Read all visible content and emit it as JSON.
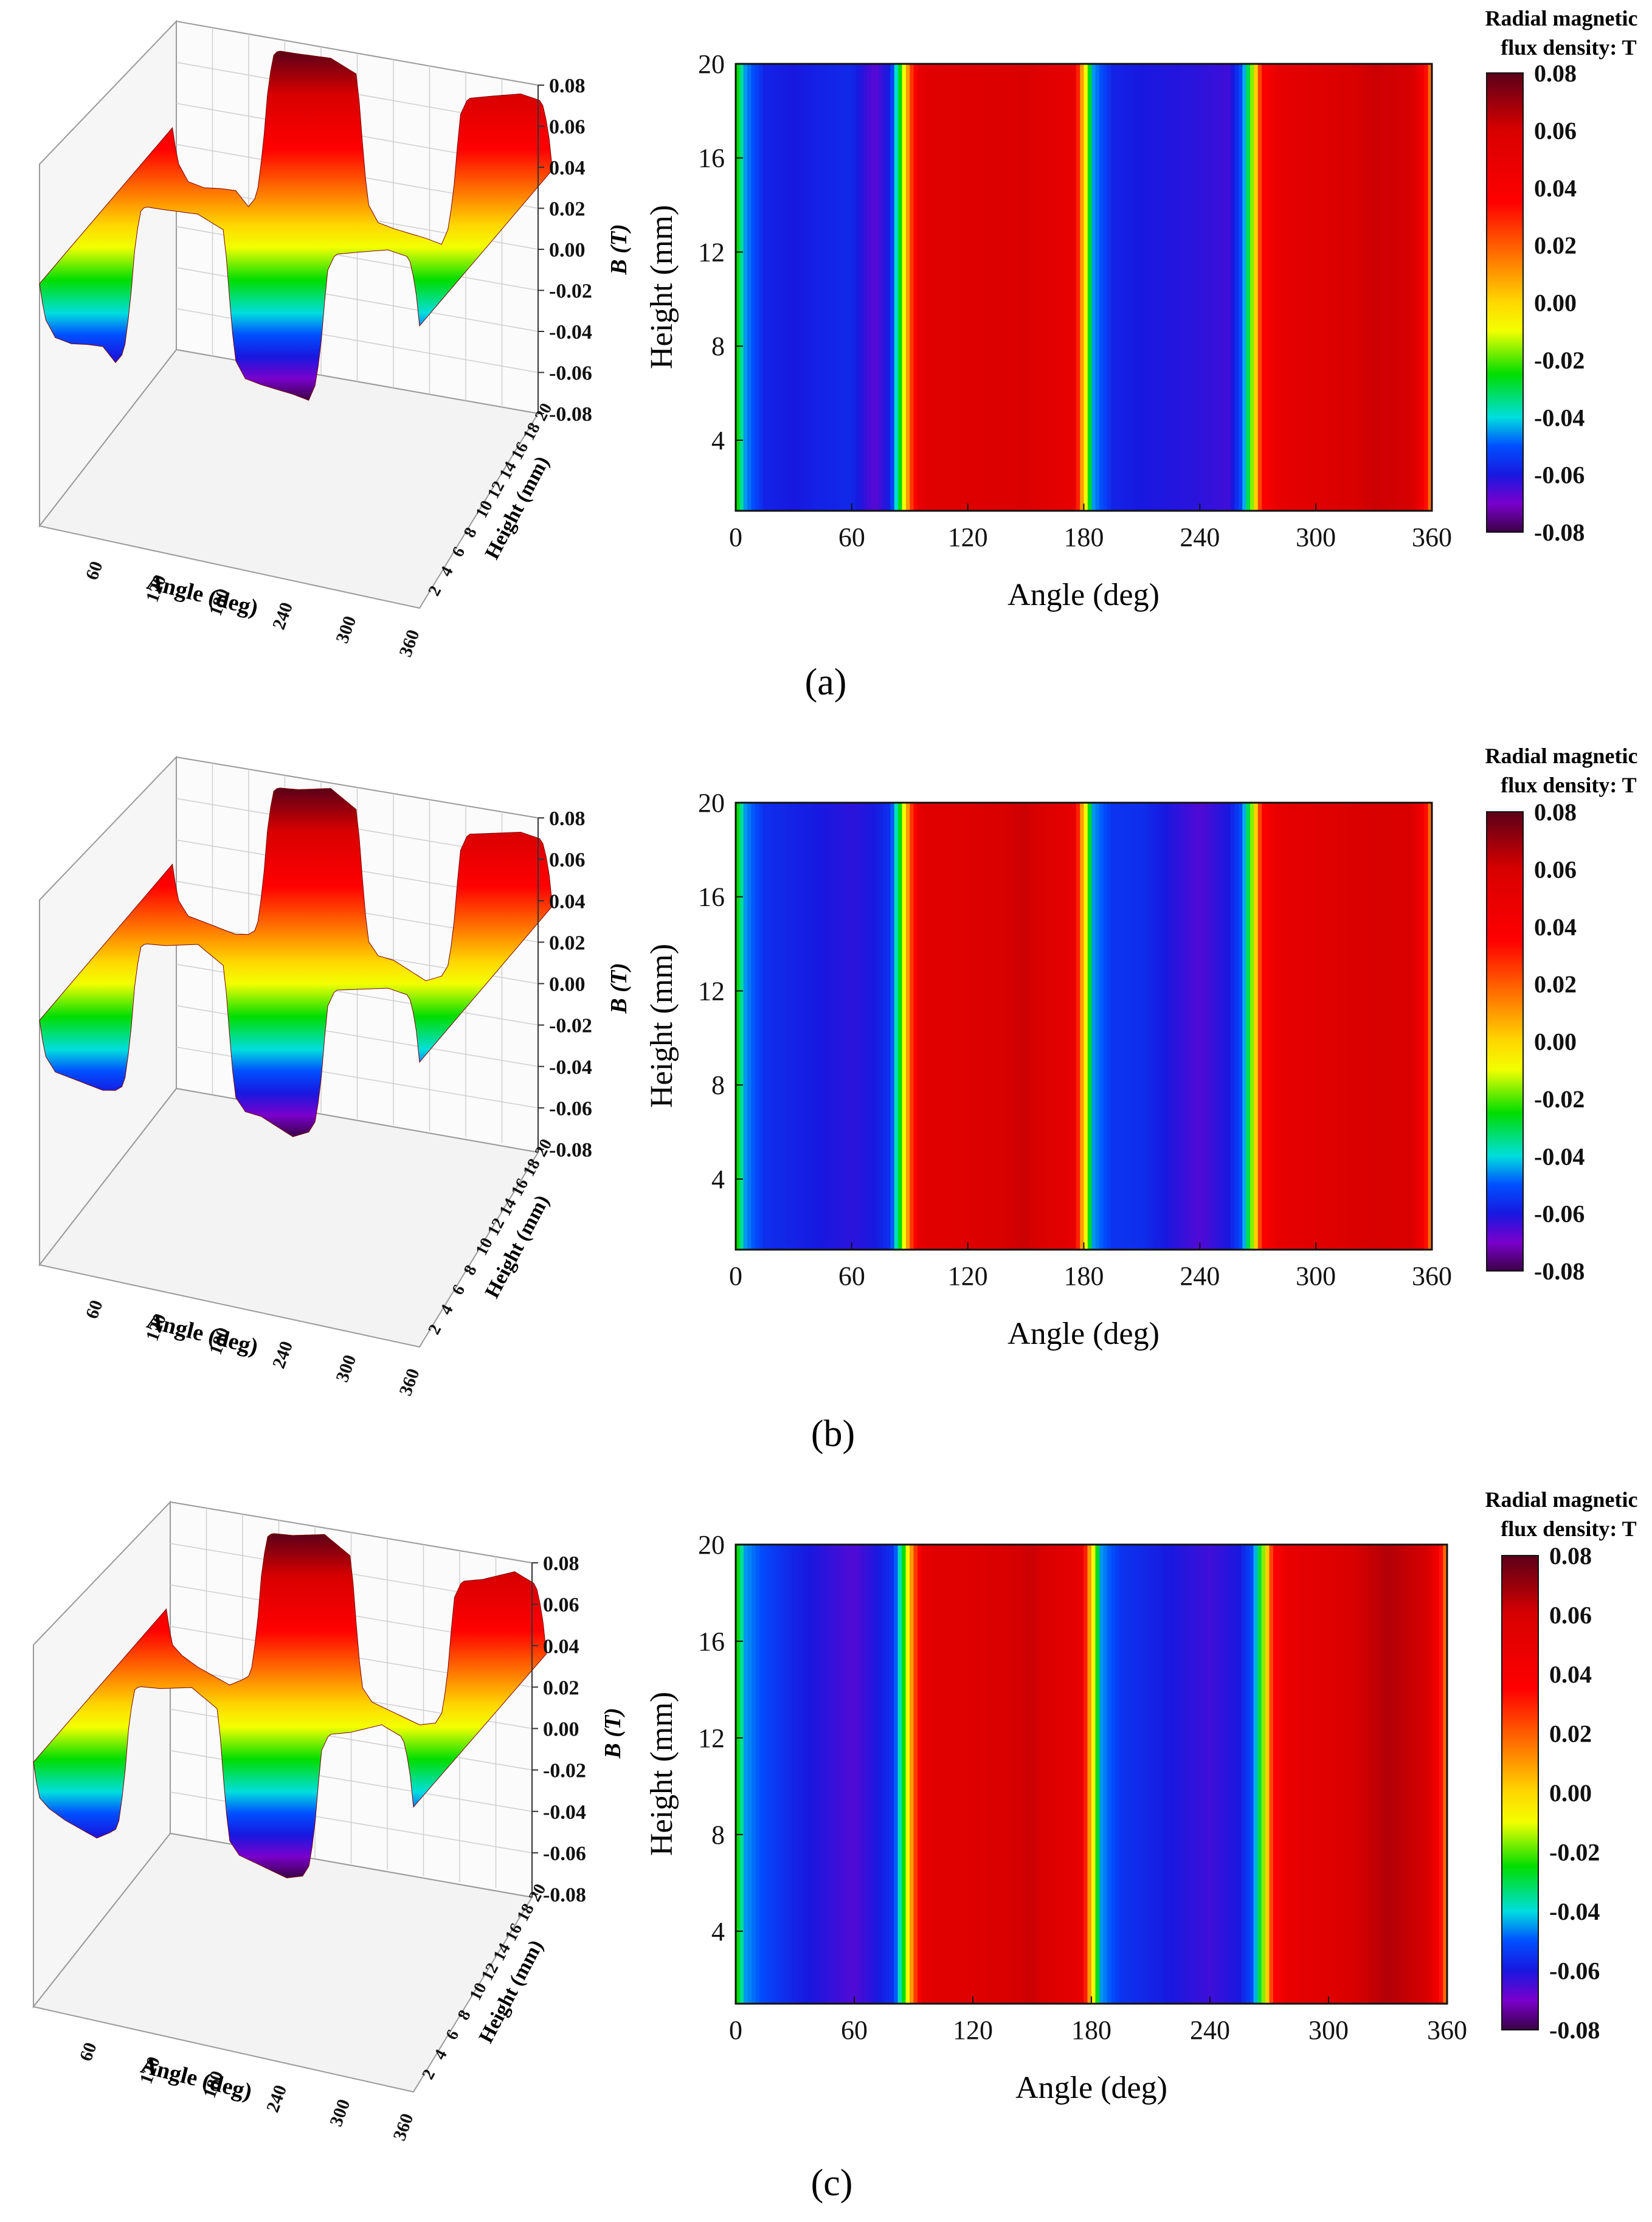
{
  "figure": {
    "panel_labels": [
      "(a)",
      "(b)",
      "(c)"
    ]
  },
  "colorbar": {
    "title_line1": "Radial magnetic",
    "title_line2": "flux density: T",
    "tick_labels": [
      "0.08",
      "0.06",
      "0.04",
      "0.02",
      "0.00",
      "-0.02",
      "-0.04",
      "-0.06",
      "-0.08"
    ],
    "levels": [
      -0.08,
      -0.06,
      -0.04,
      -0.02,
      0.0,
      0.02,
      0.04,
      0.06,
      0.08
    ],
    "colors": [
      "#5a0018",
      "#b00000",
      "#ff0000",
      "#ff7a00",
      "#ffd800",
      "#f2ff00",
      "#00dd00",
      "#00dede",
      "#0050ff",
      "#1818e0",
      "#7a00cc",
      "#3a0046"
    ]
  },
  "chart_data": [
    {
      "panel": "(a)",
      "type": "heatmap",
      "title": "",
      "xlabel": "Angle (deg)",
      "ylabel": "Height (mm)",
      "zlabel": "B (T)",
      "xlim": [
        0,
        360
      ],
      "ylim": [
        1,
        20
      ],
      "zlim": [
        -0.08,
        0.08
      ],
      "x_tick_labels": [
        "0",
        "60",
        "120",
        "180",
        "240",
        "300",
        "360"
      ],
      "y_tick_labels": [
        "4",
        "8",
        "12",
        "16",
        "20"
      ],
      "surface_angle_ticks": [
        "60",
        "120",
        "180",
        "240",
        "300",
        "360"
      ],
      "surface_height_ticks": [
        "2",
        "4",
        "6",
        "8",
        "10",
        "12",
        "14",
        "16",
        "18",
        "20"
      ],
      "surface_b_ticks": [
        "0.08",
        "0.06",
        "0.04",
        "0.02",
        "0.00",
        "-0.02",
        "-0.04",
        "-0.06",
        "-0.08"
      ],
      "angle_profile_deg": [
        0,
        5,
        15,
        30,
        45,
        60,
        72,
        80,
        86,
        90,
        95,
        100,
        120,
        150,
        175,
        180,
        185,
        195,
        210,
        240,
        255,
        262,
        268,
        272,
        280,
        300,
        330,
        350,
        356,
        360
      ],
      "b_profile_T": [
        -0.02,
        -0.045,
        -0.058,
        -0.06,
        -0.058,
        -0.057,
        -0.067,
        -0.058,
        -0.02,
        0.02,
        0.05,
        0.055,
        0.056,
        0.058,
        0.05,
        0.0,
        -0.045,
        -0.058,
        -0.06,
        -0.062,
        -0.064,
        -0.05,
        -0.01,
        0.035,
        0.05,
        0.055,
        0.062,
        0.06,
        0.04,
        0.01
      ]
    },
    {
      "panel": "(b)",
      "type": "heatmap",
      "title": "",
      "xlabel": "Angle (deg)",
      "ylabel": "Height (mm)",
      "zlabel": "B (T)",
      "xlim": [
        0,
        360
      ],
      "ylim": [
        1,
        20
      ],
      "zlim": [
        -0.08,
        0.08
      ],
      "x_tick_labels": [
        "0",
        "60",
        "120",
        "180",
        "240",
        "300",
        "360"
      ],
      "y_tick_labels": [
        "4",
        "8",
        "12",
        "16",
        "20"
      ],
      "surface_angle_ticks": [
        "60",
        "120",
        "180",
        "240",
        "300",
        "360"
      ],
      "surface_height_ticks": [
        "2",
        "4",
        "6",
        "8",
        "10",
        "12",
        "14",
        "16",
        "18",
        "20"
      ],
      "surface_b_ticks": [
        "0.08",
        "0.06",
        "0.04",
        "0.02",
        "0.00",
        "-0.02",
        "-0.04",
        "-0.06",
        "-0.08"
      ],
      "angle_profile_deg": [
        0,
        5,
        15,
        30,
        45,
        60,
        72,
        80,
        86,
        90,
        95,
        100,
        120,
        150,
        175,
        180,
        185,
        195,
        210,
        240,
        255,
        262,
        268,
        272,
        280,
        300,
        330,
        350,
        356,
        360
      ],
      "b_profile_T": [
        -0.02,
        -0.045,
        -0.056,
        -0.058,
        -0.06,
        -0.062,
        -0.06,
        -0.055,
        -0.02,
        0.02,
        0.05,
        0.054,
        0.056,
        0.062,
        0.05,
        0.0,
        -0.045,
        -0.055,
        -0.056,
        -0.066,
        -0.06,
        -0.05,
        -0.01,
        0.035,
        0.05,
        0.054,
        0.06,
        0.058,
        0.04,
        0.01
      ]
    },
    {
      "panel": "(c)",
      "type": "heatmap",
      "title": "",
      "xlabel": "Angle (deg)",
      "ylabel": "Height (mm)",
      "zlabel": "B (T)",
      "xlim": [
        0,
        360
      ],
      "ylim": [
        1,
        20
      ],
      "zlim": [
        -0.08,
        0.08
      ],
      "x_tick_labels": [
        "0",
        "60",
        "120",
        "180",
        "240",
        "300",
        "360"
      ],
      "y_tick_labels": [
        "4",
        "8",
        "12",
        "16",
        "20"
      ],
      "surface_angle_ticks": [
        "60",
        "120",
        "180",
        "240",
        "300",
        "360"
      ],
      "surface_height_ticks": [
        "2",
        "4",
        "6",
        "8",
        "10",
        "12",
        "14",
        "16",
        "18",
        "20"
      ],
      "surface_b_ticks": [
        "0.08",
        "0.06",
        "0.04",
        "0.02",
        "0.00",
        "-0.02",
        "-0.04",
        "-0.06",
        "-0.08"
      ],
      "angle_profile_deg": [
        0,
        5,
        15,
        30,
        45,
        60,
        72,
        80,
        86,
        90,
        95,
        100,
        120,
        150,
        175,
        180,
        185,
        195,
        210,
        240,
        255,
        262,
        268,
        272,
        280,
        300,
        330,
        350,
        356,
        360
      ],
      "b_profile_T": [
        -0.02,
        -0.045,
        -0.052,
        -0.058,
        -0.062,
        -0.066,
        -0.06,
        -0.055,
        -0.02,
        0.02,
        0.05,
        0.054,
        0.056,
        0.062,
        0.05,
        0.0,
        -0.045,
        -0.055,
        -0.058,
        -0.064,
        -0.06,
        -0.05,
        -0.01,
        0.035,
        0.05,
        0.055,
        0.066,
        0.06,
        0.04,
        0.01
      ]
    }
  ]
}
